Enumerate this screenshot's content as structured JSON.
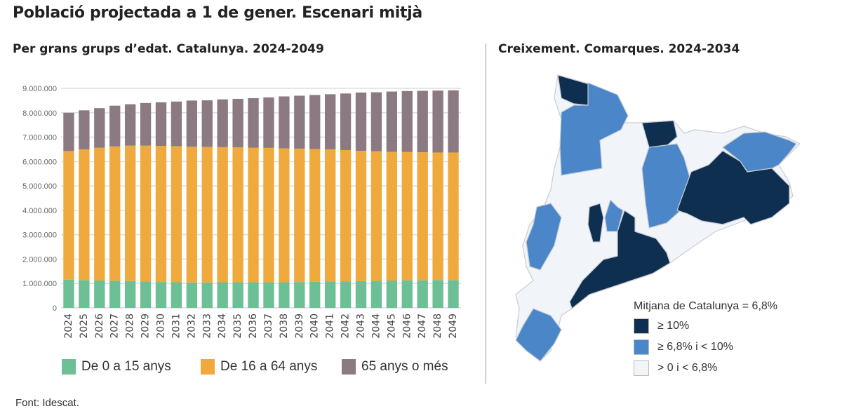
{
  "title": "Població projectada a 1 de gener. Escenari mitjà",
  "left_subtitle": "Per grans grups d’edat. Catalunya. 2024-2049",
  "right_subtitle": "Creixement. Comarques. 2024-2034",
  "source": "Font: Idescat.",
  "chart_data": {
    "type": "bar",
    "stacked": true,
    "categories": [
      "2024",
      "2025",
      "2026",
      "2027",
      "2028",
      "2029",
      "2030",
      "2031",
      "2032",
      "2033",
      "2034",
      "2035",
      "2036",
      "2037",
      "2038",
      "2039",
      "2040",
      "2041",
      "2042",
      "2043",
      "2044",
      "2045",
      "2046",
      "2047",
      "2048",
      "2049"
    ],
    "series": [
      {
        "name": "De 0 a 15 anys",
        "color": "#6dbf95",
        "values": [
          1160000,
          1140000,
          1120000,
          1110000,
          1100000,
          1080000,
          1060000,
          1050000,
          1040000,
          1040000,
          1050000,
          1050000,
          1050000,
          1050000,
          1050000,
          1060000,
          1070000,
          1080000,
          1090000,
          1100000,
          1110000,
          1120000,
          1130000,
          1130000,
          1140000,
          1140000
        ]
      },
      {
        "name": "De 16 a 64 anys",
        "color": "#f0a93d",
        "values": [
          5270000,
          5360000,
          5450000,
          5510000,
          5550000,
          5570000,
          5580000,
          5580000,
          5570000,
          5560000,
          5540000,
          5530000,
          5520000,
          5510000,
          5490000,
          5470000,
          5440000,
          5420000,
          5380000,
          5340000,
          5310000,
          5280000,
          5260000,
          5250000,
          5230000,
          5230000
        ]
      },
      {
        "name": "65 anys o més",
        "color": "#8c7a82",
        "values": [
          1570000,
          1600000,
          1620000,
          1670000,
          1700000,
          1750000,
          1790000,
          1830000,
          1890000,
          1910000,
          1960000,
          1990000,
          2030000,
          2070000,
          2130000,
          2170000,
          2220000,
          2260000,
          2320000,
          2390000,
          2420000,
          2470000,
          2500000,
          2520000,
          2540000,
          2550000
        ]
      }
    ],
    "ylim": [
      0,
      9000000
    ],
    "yticks": [
      "0",
      "1.000.000",
      "2.000.000",
      "3.000.000",
      "4.000.000",
      "5.000.000",
      "6.000.000",
      "7.000.000",
      "8.000.000",
      "9.000.000"
    ],
    "grid": true,
    "legend": "bottom"
  },
  "map": {
    "legend_title": "Mitjana de Catalunya = 6,8%",
    "classes": [
      {
        "label": "≥ 10%",
        "color": "#0e2f50"
      },
      {
        "label": "≥ 6,8% i < 10%",
        "color": "#4a86c8"
      },
      {
        "label": "> 0 i < 6,8%",
        "color": "#f1f4f9"
      }
    ]
  }
}
